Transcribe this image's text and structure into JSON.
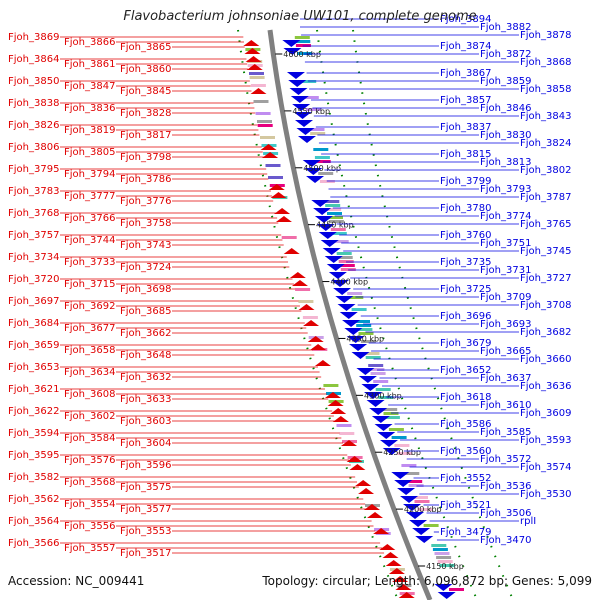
{
  "title": "Flavobacterium johnsoniae UW101, complete genome",
  "footer": {
    "accession": "Accession: NC_009441",
    "summary": "Topology: circular; Length: 6,096,872 bp; Genes: 5,099"
  },
  "colors": {
    "forward": "#e00000",
    "reverse": "#0000e0",
    "backbone": "#808080",
    "tick": "#008000"
  },
  "kbp_labels": [
    "4600 kbp",
    "4550 kbp",
    "4500 kbp",
    "4450 kbp",
    "4400 kbp",
    "4350 kbp",
    "4300 kbp",
    "4250 kbp",
    "4200 kbp",
    "4150 kbp"
  ],
  "left_labels": [
    "Fjoh_3869",
    "Fjoh_3866",
    "Fjoh_3865",
    "Fjoh_3864",
    "Fjoh_3861",
    "Fjoh_3860",
    "Fjoh_3850",
    "Fjoh_3847",
    "Fjoh_3845",
    "Fjoh_3838",
    "Fjoh_3836",
    "Fjoh_3828",
    "Fjoh_3826",
    "Fjoh_3819",
    "Fjoh_3817",
    "Fjoh_3806",
    "Fjoh_3805",
    "Fjoh_3798",
    "Fjoh_3795",
    "Fjoh_3794",
    "Fjoh_3786",
    "Fjoh_3783",
    "Fjoh_3777",
    "Fjoh_3776",
    "Fjoh_3768",
    "Fjoh_3766",
    "Fjoh_3758",
    "Fjoh_3757",
    "Fjoh_3744",
    "Fjoh_3743",
    "Fjoh_3734",
    "Fjoh_3733",
    "Fjoh_3724",
    "Fjoh_3720",
    "Fjoh_3715",
    "Fjoh_3698",
    "Fjoh_3697",
    "Fjoh_3692",
    "Fjoh_3685",
    "Fjoh_3684",
    "Fjoh_3677",
    "Fjoh_3662",
    "Fjoh_3659",
    "Fjoh_3658",
    "Fjoh_3648",
    "Fjoh_3653",
    "Fjoh_3634",
    "Fjoh_3632",
    "Fjoh_3621",
    "Fjoh_3608",
    "Fjoh_3633",
    "Fjoh_3622",
    "Fjoh_3602",
    "Fjoh_3603",
    "Fjoh_3594",
    "Fjoh_3584",
    "Fjoh_3604",
    "Fjoh_3595",
    "Fjoh_3576",
    "Fjoh_3596",
    "Fjoh_3582",
    "Fjoh_3568",
    "Fjoh_3575",
    "Fjoh_3562",
    "Fjoh_3554",
    "Fjoh_3577",
    "Fjoh_3564",
    "Fjoh_3556",
    "Fjoh_3553",
    "Fjoh_3566",
    "Fjoh_3557",
    "Fjoh_3517"
  ],
  "right_labels": [
    "Fjoh_3894",
    "Fjoh_3882",
    "Fjoh_3878",
    "Fjoh_3874",
    "Fjoh_3872",
    "Fjoh_3868",
    "Fjoh_3867",
    "Fjoh_3859",
    "Fjoh_3858",
    "Fjoh_3857",
    "Fjoh_3846",
    "Fjoh_3843",
    "Fjoh_3837",
    "Fjoh_3830",
    "Fjoh_3824",
    "Fjoh_3815",
    "Fjoh_3813",
    "Fjoh_3802",
    "Fjoh_3799",
    "Fjoh_3793",
    "Fjoh_3787",
    "Fjoh_3780",
    "Fjoh_3774",
    "Fjoh_3765",
    "Fjoh_3760",
    "Fjoh_3751",
    "Fjoh_3745",
    "Fjoh_3735",
    "Fjoh_3731",
    "Fjoh_3727",
    "Fjoh_3725",
    "Fjoh_3709",
    "Fjoh_3708",
    "Fjoh_3696",
    "Fjoh_3693",
    "Fjoh_3682",
    "Fjoh_3679",
    "Fjoh_3665",
    "Fjoh_3660",
    "Fjoh_3652",
    "Fjoh_3637",
    "Fjoh_3636",
    "Fjoh_3618",
    "Fjoh_3610",
    "Fjoh_3609",
    "Fjoh_3586",
    "Fjoh_3585",
    "Fjoh_3593",
    "Fjoh_3560",
    "Fjoh_3572",
    "Fjoh_3574",
    "Fjoh_3552",
    "Fjoh_3536",
    "Fjoh_3530",
    "Fjoh_3521",
    "Fjoh_3506",
    "rplI",
    "Fjoh_3479",
    "Fjoh_3470"
  ]
}
